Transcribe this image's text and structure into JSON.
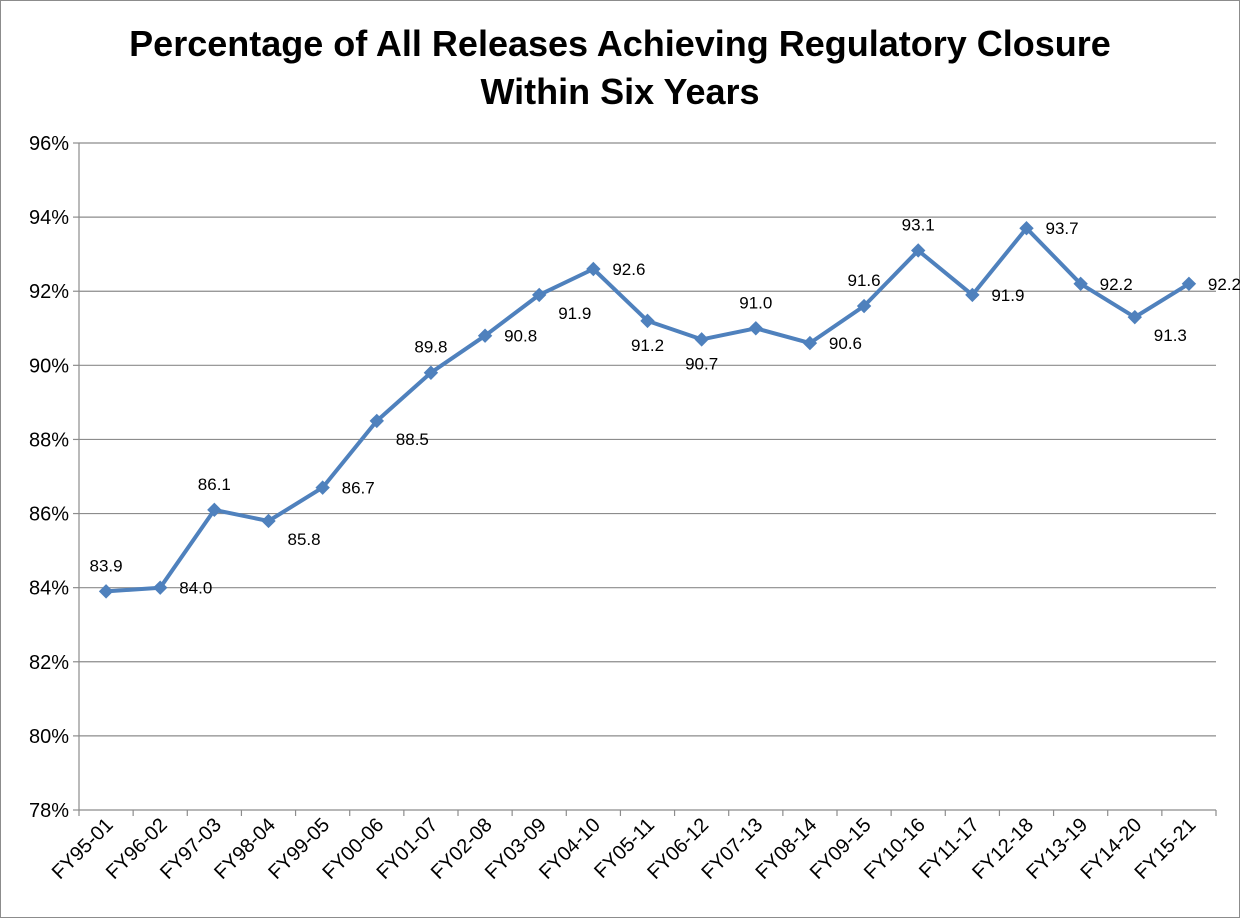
{
  "chart_data": {
    "type": "line",
    "title": [
      "Percentage of All Releases Achieving Regulatory Closure",
      "Within Six Years"
    ],
    "xlabel": "",
    "ylabel": "",
    "ylim": [
      78,
      96
    ],
    "ytick_step": 2,
    "ytick_labels": [
      "78%",
      "80%",
      "82%",
      "84%",
      "86%",
      "88%",
      "90%",
      "92%",
      "94%",
      "96%"
    ],
    "grid": true,
    "legend": "none",
    "categories": [
      "FY95-01",
      "FY96-02",
      "FY97-03",
      "FY98-04",
      "FY99-05",
      "FY00-06",
      "FY01-07",
      "FY02-08",
      "FY03-09",
      "FY04-10",
      "FY05-11",
      "FY06-12",
      "FY07-13",
      "FY08-14",
      "FY09-15",
      "FY10-16",
      "FY11-17",
      "FY12-18",
      "FY13-19",
      "FY14-20",
      "FY15-21"
    ],
    "series": [
      {
        "color": "#4f81bd",
        "marker": "diamond",
        "values": [
          83.9,
          84.0,
          86.1,
          85.8,
          86.7,
          88.5,
          89.8,
          90.8,
          91.9,
          92.6,
          91.2,
          90.7,
          91.0,
          90.6,
          91.6,
          93.1,
          91.9,
          93.7,
          92.2,
          91.3,
          92.2
        ],
        "data_labels": [
          "83.9",
          "84.0",
          "86.1",
          "85.8",
          "86.7",
          "88.5",
          "89.8",
          "90.8",
          "91.9",
          "92.6",
          "91.2",
          "90.7",
          "91.0",
          "90.6",
          "91.6",
          "93.1",
          "91.9",
          "93.7",
          "92.2",
          "91.3",
          "92.2"
        ],
        "label_positions": [
          "above",
          "right",
          "above",
          "below-right",
          "right",
          "below-right",
          "above",
          "right",
          "below-right",
          "right",
          "below",
          "below",
          "above",
          "right",
          "above",
          "above",
          "right",
          "right",
          "right",
          "below-right",
          "right"
        ]
      }
    ]
  }
}
